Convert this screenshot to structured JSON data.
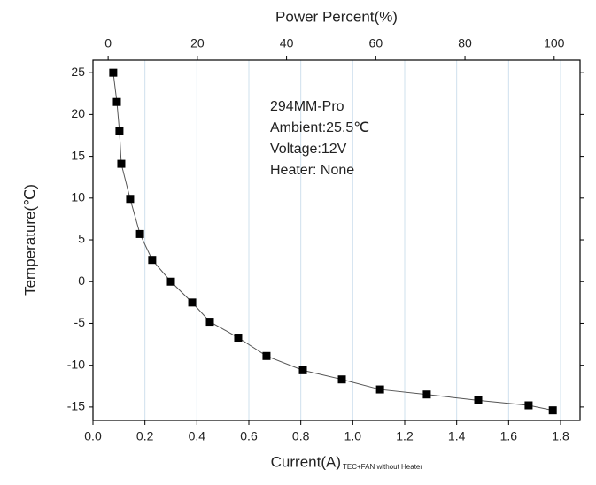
{
  "chart_data": {
    "type": "line",
    "x_label": "Current(A)",
    "x_label_note": "TEC+FAN without Heater",
    "y_label": "Temperature(℃)",
    "x2_label": "Power Percent(%)",
    "annotations": [
      "294MM-Pro",
      "Ambient:25.5℃",
      "Voltage:12V",
      "Heater: None"
    ],
    "x": [
      0.078,
      0.092,
      0.102,
      0.109,
      0.143,
      0.181,
      0.228,
      0.3,
      0.382,
      0.45,
      0.559,
      0.668,
      0.808,
      0.958,
      1.105,
      1.285,
      1.483,
      1.677,
      1.77
    ],
    "series": [
      {
        "color": "#000000",
        "values": [
          25,
          21.5,
          18.0,
          14.1,
          9.9,
          5.7,
          2.6,
          0.0,
          -2.5,
          -4.8,
          -6.7,
          -8.9,
          -10.6,
          -11.7,
          -12.9,
          -13.5,
          -14.2,
          -14.8,
          -15.4
        ]
      }
    ],
    "xlim": [
      0,
      1.875
    ],
    "xticks": [
      {
        "value": 0,
        "label": "0.0"
      },
      0.2,
      0.4,
      0.6,
      0.8,
      {
        "value": 1,
        "label": "1.0"
      },
      1.2,
      1.4,
      1.6,
      1.8
    ],
    "x2lim": [
      -3.4,
      105.8
    ],
    "x2ticks": [
      0,
      20,
      40,
      60,
      80,
      100
    ],
    "ylim": [
      -16.6,
      26.5
    ],
    "yticks": [
      -15,
      -10,
      -5,
      0,
      5,
      10,
      15,
      20,
      25
    ],
    "grid": "x",
    "grid_color": "#cfe0ee"
  }
}
